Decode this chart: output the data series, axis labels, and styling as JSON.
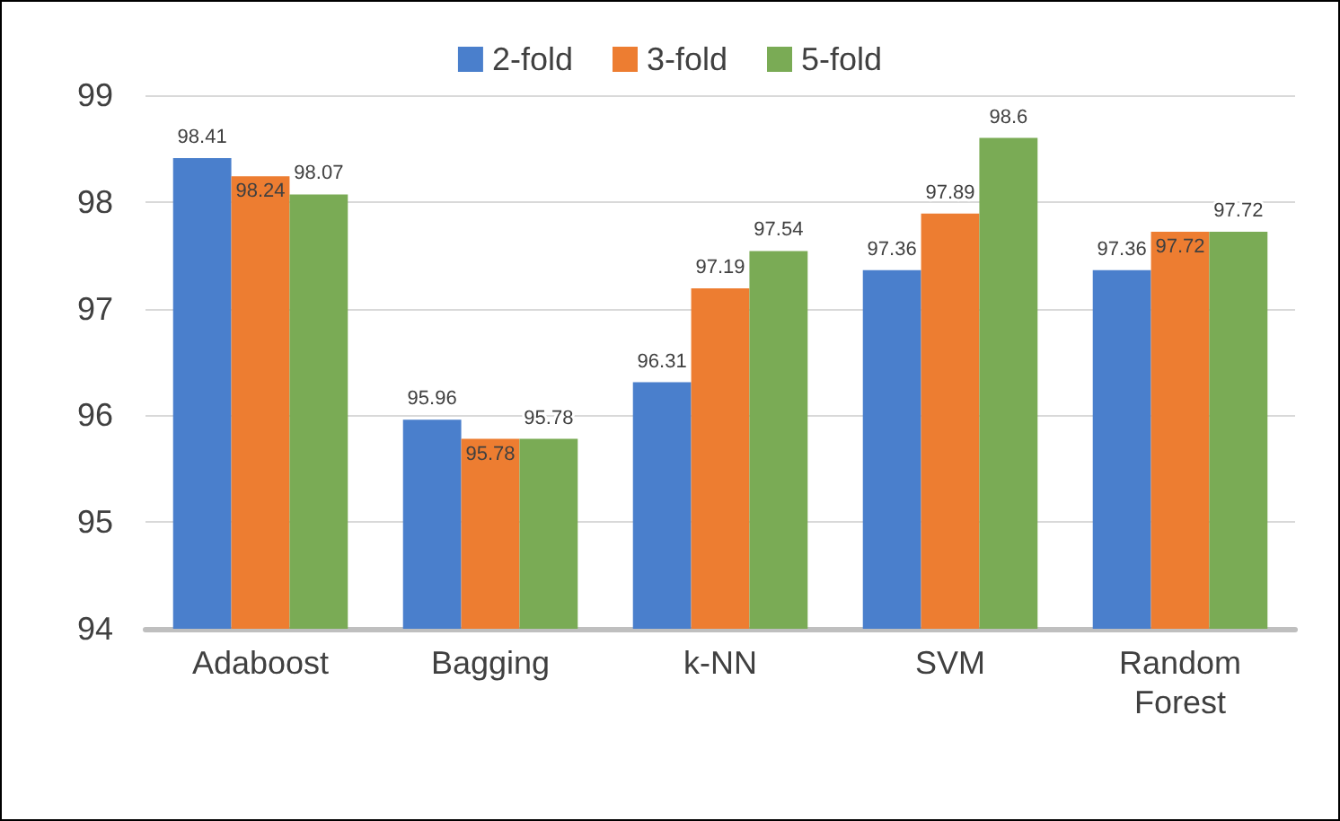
{
  "chart_data": {
    "type": "bar",
    "categories": [
      "Adaboost",
      "Bagging",
      "k-NN",
      "SVM",
      "Random Forest"
    ],
    "series": [
      {
        "name": "2-fold",
        "color": "#4a7fcc",
        "values": [
          98.41,
          95.96,
          96.31,
          97.36,
          97.36
        ]
      },
      {
        "name": "3-fold",
        "color": "#ed7d31",
        "values": [
          98.24,
          95.78,
          97.19,
          97.89,
          97.72
        ]
      },
      {
        "name": "5-fold",
        "color": "#7aab55",
        "values": [
          98.07,
          95.78,
          97.54,
          98.6,
          97.72
        ]
      }
    ],
    "ylim": [
      94,
      99
    ],
    "yticks": [
      94,
      95,
      96,
      97,
      98,
      99
    ],
    "grid": "y",
    "legend": "top",
    "data_labels": true
  }
}
